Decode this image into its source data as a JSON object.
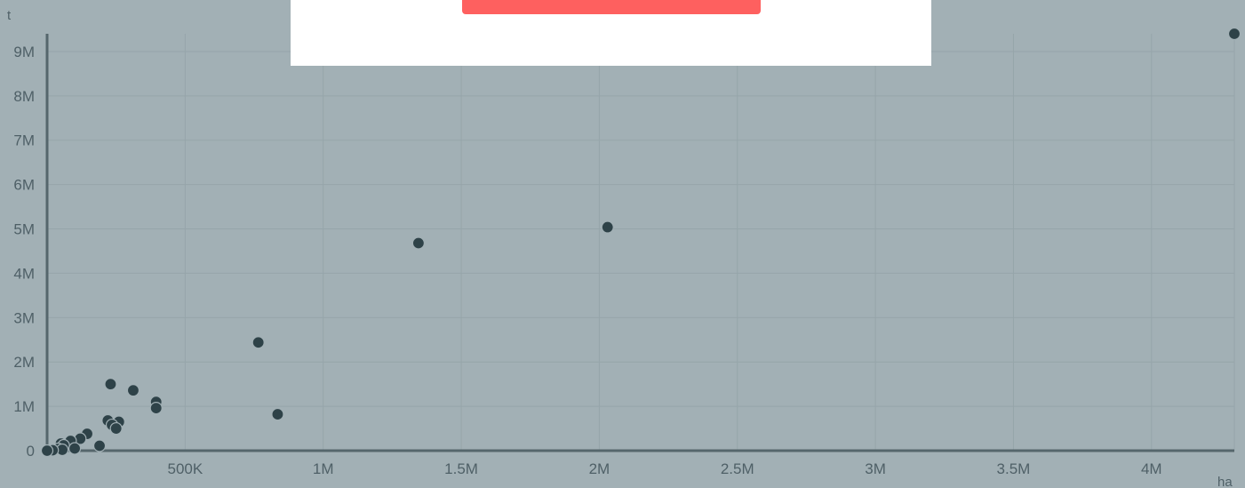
{
  "chart_data": {
    "type": "scatter",
    "title": "",
    "xlabel": "ha",
    "ylabel": "t",
    "xlim": [
      0,
      4300000
    ],
    "ylim": [
      0,
      9400000
    ],
    "x_ticks": [
      {
        "value": 500000,
        "label": "500K"
      },
      {
        "value": 1000000,
        "label": "1M"
      },
      {
        "value": 1500000,
        "label": "1.5M"
      },
      {
        "value": 2000000,
        "label": "2M"
      },
      {
        "value": 2500000,
        "label": "2.5M"
      },
      {
        "value": 3000000,
        "label": "3M"
      },
      {
        "value": 3500000,
        "label": "3.5M"
      },
      {
        "value": 4000000,
        "label": "4M"
      }
    ],
    "y_ticks": [
      {
        "value": 0,
        "label": "0"
      },
      {
        "value": 1000000,
        "label": "1M"
      },
      {
        "value": 2000000,
        "label": "2M"
      },
      {
        "value": 3000000,
        "label": "3M"
      },
      {
        "value": 4000000,
        "label": "4M"
      },
      {
        "value": 5000000,
        "label": "5M"
      },
      {
        "value": 6000000,
        "label": "6M"
      },
      {
        "value": 7000000,
        "label": "7M"
      },
      {
        "value": 8000000,
        "label": "8M"
      },
      {
        "value": 9000000,
        "label": "9M"
      }
    ],
    "grid": true,
    "legend": "none",
    "point_color": "#2e4248",
    "points": [
      {
        "x": 4300000,
        "y": 9400000
      },
      {
        "x": 2030000,
        "y": 5040000
      },
      {
        "x": 1345000,
        "y": 4680000
      },
      {
        "x": 765000,
        "y": 2440000
      },
      {
        "x": 835000,
        "y": 820000
      },
      {
        "x": 230000,
        "y": 1500000
      },
      {
        "x": 312000,
        "y": 1360000
      },
      {
        "x": 395000,
        "y": 1100000
      },
      {
        "x": 395000,
        "y": 960000
      },
      {
        "x": 220000,
        "y": 680000
      },
      {
        "x": 260000,
        "y": 650000
      },
      {
        "x": 235000,
        "y": 580000
      },
      {
        "x": 250000,
        "y": 500000
      },
      {
        "x": 145000,
        "y": 380000
      },
      {
        "x": 120000,
        "y": 270000
      },
      {
        "x": 85000,
        "y": 220000
      },
      {
        "x": 50000,
        "y": 160000
      },
      {
        "x": 60000,
        "y": 120000
      },
      {
        "x": 190000,
        "y": 110000
      },
      {
        "x": 100000,
        "y": 50000
      },
      {
        "x": 40000,
        "y": 40000
      },
      {
        "x": 55000,
        "y": 20000
      },
      {
        "x": 20000,
        "y": 10000
      },
      {
        "x": 0,
        "y": 0
      }
    ]
  },
  "popup": {
    "background": "#ffffff",
    "button_color": "#fe605f"
  }
}
